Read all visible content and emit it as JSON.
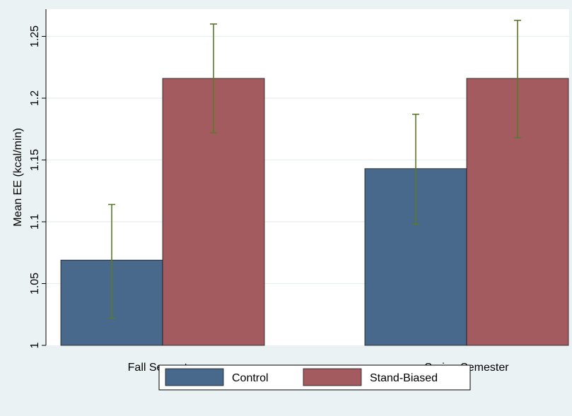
{
  "chart_data": {
    "type": "bar",
    "title": "",
    "xlabel": "",
    "ylabel": "Mean EE (kcal/min)",
    "ylim": [
      1,
      1.272
    ],
    "yticks": [
      1,
      1.05,
      1.1,
      1.15,
      1.2,
      1.25
    ],
    "ytick_labels": [
      "1",
      "1.05",
      "1.1",
      "1.15",
      "1.2",
      "1.25"
    ],
    "grid": true,
    "legend_position": "bottom",
    "categories": [
      "Fall Semester",
      "Spring Semester"
    ],
    "series": [
      {
        "name": "Control",
        "color": "#48698c",
        "values": [
          1.069,
          1.143
        ],
        "error_low": [
          1.022,
          1.098
        ],
        "error_high": [
          1.114,
          1.187
        ]
      },
      {
        "name": "Stand-Biased",
        "color": "#a35b5f",
        "values": [
          1.216,
          1.216
        ],
        "error_low": [
          1.172,
          1.168
        ],
        "error_high": [
          1.26,
          1.263
        ]
      }
    ],
    "error_bar_color": "#5a7a2a"
  }
}
